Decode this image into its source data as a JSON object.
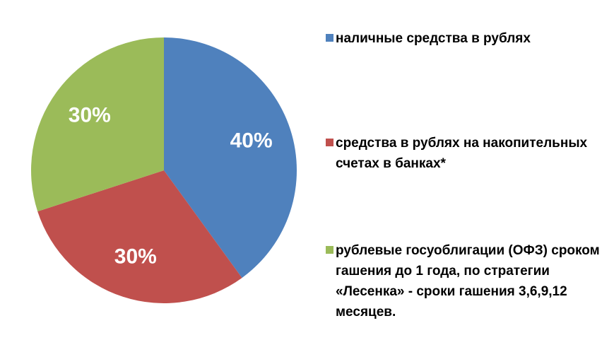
{
  "chart_data": {
    "type": "pie",
    "categories": [
      "наличные средства в рублях",
      "средства в рублях на накопительных счетах в банках*",
      "рублевые госуоблигации (ОФЗ) сроком гашения до 1 года, по стратегии «Лесенка» - сроки гашения 3,6,9,12 месяцев."
    ],
    "values": [
      40,
      30,
      30
    ],
    "value_labels": [
      "40%",
      "30%",
      "30%"
    ],
    "colors": [
      "#4f81bd",
      "#c0504d",
      "#9bbb59"
    ],
    "legend": "right"
  }
}
